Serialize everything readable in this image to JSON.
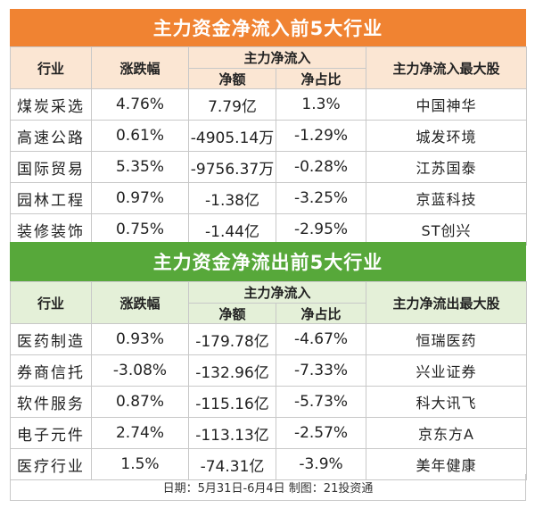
{
  "inflow": {
    "title": "主力资金净流入前5大行业",
    "headers": {
      "industry": "行业",
      "change": "涨跌幅",
      "main_net": "主力净流入",
      "net_amount": "净额",
      "net_ratio": "净占比",
      "top_stock": "主力净流入最大股"
    },
    "rows": [
      {
        "industry": "煤炭采选",
        "change": "4.76%",
        "net_amount": "7.79亿",
        "net_ratio": "1.3%",
        "top_stock": "中国神华"
      },
      {
        "industry": "高速公路",
        "change": "0.61%",
        "net_amount": "-4905.14万",
        "net_ratio": "-1.29%",
        "top_stock": "城发环境"
      },
      {
        "industry": "国际贸易",
        "change": "5.35%",
        "net_amount": "-9756.37万",
        "net_ratio": "-0.28%",
        "top_stock": "江苏国泰"
      },
      {
        "industry": "园林工程",
        "change": "0.97%",
        "net_amount": "-1.38亿",
        "net_ratio": "-3.25%",
        "top_stock": "京蓝科技"
      },
      {
        "industry": "装修装饰",
        "change": "0.75%",
        "net_amount": "-1.44亿",
        "net_ratio": "-2.95%",
        "top_stock": "ST创兴"
      }
    ]
  },
  "outflow": {
    "title": "主力资金净流出前5大行业",
    "headers": {
      "industry": "行业",
      "change": "涨跌幅",
      "main_net": "主力净流入",
      "net_amount": "净额",
      "net_ratio": "净占比",
      "top_stock": "主力净流出最大股"
    },
    "rows": [
      {
        "industry": "医药制造",
        "change": "0.93%",
        "net_amount": "-179.78亿",
        "net_ratio": "-4.67%",
        "top_stock": "恒瑞医药"
      },
      {
        "industry": "券商信托",
        "change": "-3.08%",
        "net_amount": "-132.96亿",
        "net_ratio": "-7.33%",
        "top_stock": "兴业证券"
      },
      {
        "industry": "软件服务",
        "change": "0.87%",
        "net_amount": "-115.16亿",
        "net_ratio": "-5.73%",
        "top_stock": "科大讯飞"
      },
      {
        "industry": "电子元件",
        "change": "2.74%",
        "net_amount": "-113.13亿",
        "net_ratio": "-2.57%",
        "top_stock": "京东方A"
      },
      {
        "industry": "医疗行业",
        "change": "1.5%",
        "net_amount": "-74.31亿",
        "net_ratio": "-3.9%",
        "top_stock": "美年健康"
      }
    ]
  },
  "footer": "日期：5月31日-6月4日  制图：21投资通",
  "colors": {
    "inflow_title_bg": "#f08332",
    "inflow_header_bg": "#fbe6d3",
    "outflow_title_bg": "#57a83a",
    "outflow_header_bg": "#e4f0d8"
  }
}
